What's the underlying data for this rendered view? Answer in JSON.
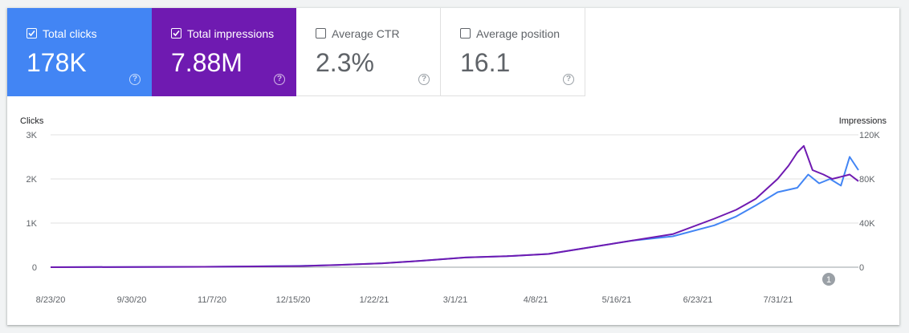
{
  "metrics": [
    {
      "label": "Total clicks",
      "value": "178K",
      "checked": true,
      "color": "#4285f4"
    },
    {
      "label": "Total impressions",
      "value": "7.88M",
      "checked": true,
      "color": "#6f1ab1"
    },
    {
      "label": "Average CTR",
      "value": "2.3%",
      "checked": false
    },
    {
      "label": "Average position",
      "value": "16.1",
      "checked": false
    }
  ],
  "help_glyph": "?",
  "annotation_badge": "1",
  "chart_data": {
    "type": "line",
    "y_left": {
      "label": "Clicks",
      "ticks": [
        "0",
        "1K",
        "2K",
        "3K"
      ],
      "range": [
        0,
        3000
      ]
    },
    "y_right": {
      "label": "Impressions",
      "ticks": [
        "0",
        "40K",
        "80K",
        "120K"
      ],
      "range": [
        0,
        120000
      ]
    },
    "x_ticks": [
      "8/23/20",
      "9/30/20",
      "11/7/20",
      "12/15/20",
      "1/22/21",
      "3/1/21",
      "4/8/21",
      "5/16/21",
      "6/23/21",
      "7/31/21"
    ],
    "x_range": [
      "2020-08-23",
      "2021-08-28"
    ],
    "grid": true,
    "series": [
      {
        "name": "Clicks",
        "axis": "left",
        "color": "#4285f4",
        "points": [
          [
            "2020-08-23",
            0
          ],
          [
            "2020-09-30",
            5
          ],
          [
            "2020-11-07",
            10
          ],
          [
            "2020-12-15",
            30
          ],
          [
            "2021-01-01",
            50
          ],
          [
            "2021-01-22",
            90
          ],
          [
            "2021-02-10",
            150
          ],
          [
            "2021-03-01",
            220
          ],
          [
            "2021-03-20",
            250
          ],
          [
            "2021-04-08",
            300
          ],
          [
            "2021-04-27",
            450
          ],
          [
            "2021-05-16",
            600
          ],
          [
            "2021-06-04",
            700
          ],
          [
            "2021-06-23",
            950
          ],
          [
            "2021-07-03",
            1150
          ],
          [
            "2021-07-12",
            1400
          ],
          [
            "2021-07-22",
            1700
          ],
          [
            "2021-07-31",
            1800
          ],
          [
            "2021-08-05",
            2100
          ],
          [
            "2021-08-10",
            1900
          ],
          [
            "2021-08-15",
            2000
          ],
          [
            "2021-08-20",
            1850
          ],
          [
            "2021-08-24",
            2500
          ],
          [
            "2021-08-28",
            2200
          ]
        ]
      },
      {
        "name": "Impressions",
        "axis": "right",
        "color": "#6f1ab1",
        "points": [
          [
            "2020-08-23",
            0
          ],
          [
            "2020-09-30",
            200
          ],
          [
            "2020-11-07",
            400
          ],
          [
            "2020-12-15",
            1000
          ],
          [
            "2021-01-01",
            2000
          ],
          [
            "2021-01-22",
            3600
          ],
          [
            "2021-02-10",
            6000
          ],
          [
            "2021-03-01",
            8800
          ],
          [
            "2021-03-20",
            10000
          ],
          [
            "2021-04-08",
            12000
          ],
          [
            "2021-04-27",
            18000
          ],
          [
            "2021-05-16",
            24000
          ],
          [
            "2021-06-04",
            30000
          ],
          [
            "2021-06-23",
            44000
          ],
          [
            "2021-07-03",
            52000
          ],
          [
            "2021-07-12",
            62000
          ],
          [
            "2021-07-22",
            80000
          ],
          [
            "2021-07-27",
            92000
          ],
          [
            "2021-07-31",
            104000
          ],
          [
            "2021-08-03",
            110000
          ],
          [
            "2021-08-07",
            88000
          ],
          [
            "2021-08-12",
            84000
          ],
          [
            "2021-08-16",
            80000
          ],
          [
            "2021-08-20",
            82000
          ],
          [
            "2021-08-24",
            84000
          ],
          [
            "2021-08-28",
            78000
          ]
        ]
      }
    ]
  }
}
